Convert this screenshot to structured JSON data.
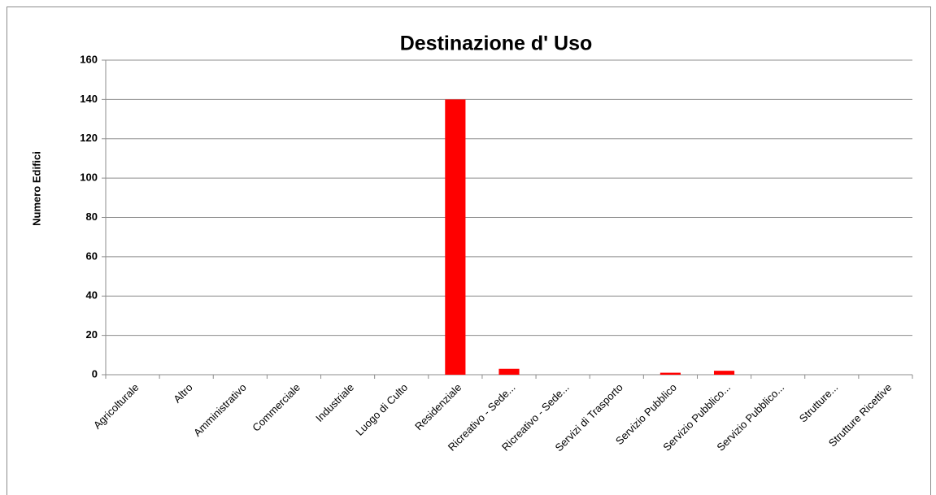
{
  "chart_data": {
    "type": "bar",
    "title": "Destinazione d' Uso",
    "y_label": "Numero Edifici",
    "categories": [
      "Agricolturale",
      "Altro",
      "Amministrativo",
      "Commerciale",
      "Industriale",
      "Luogo di Culto",
      "Residenziale",
      "Ricreativo - Sede...",
      "Ricreativo - Sede...",
      "Servizi di Trasporto",
      "Servizio Pubblico",
      "Servizio Pubblico...",
      "Servizio Pubblico...",
      "Strutture...",
      "Strutture Ricettive"
    ],
    "values": [
      0,
      0,
      0,
      0,
      0,
      0,
      140,
      3,
      0,
      0,
      1,
      2,
      0,
      0,
      0
    ],
    "color": "#ff0000",
    "ylim": [
      0,
      160
    ],
    "yticks": [
      0,
      20,
      40,
      60,
      80,
      100,
      120,
      140,
      160
    ],
    "grid": true
  }
}
